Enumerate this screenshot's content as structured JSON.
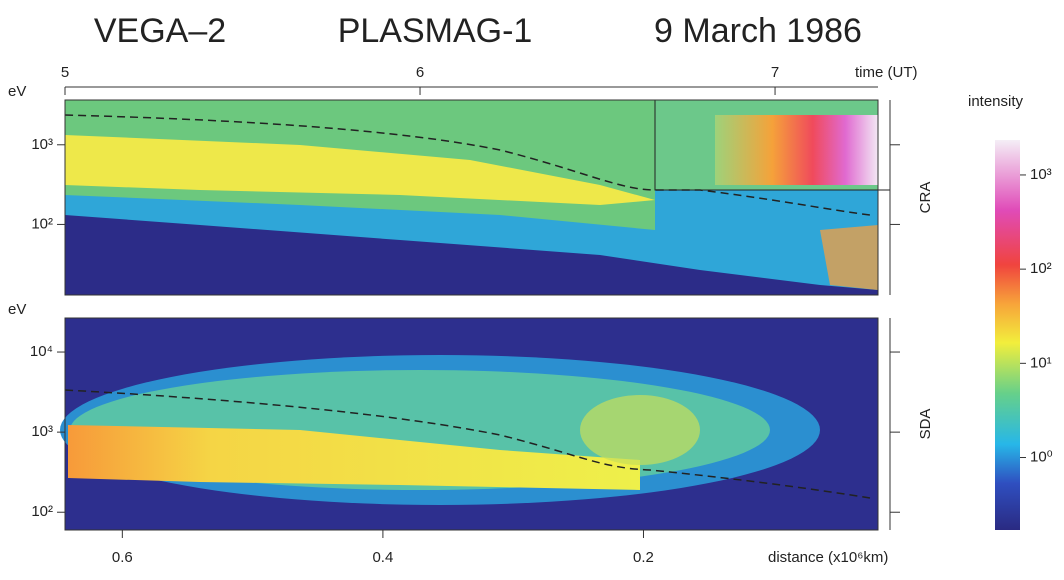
{
  "header": {
    "spacecraft": "VEGA–2",
    "instrument": "PLASMAG-1",
    "date": "9 March 1986"
  },
  "chart_data": [
    {
      "type": "spectrogram",
      "side_label": "CRA",
      "y_label": "eV",
      "x_label": "time (UT)",
      "xlim": [
        5,
        7.29
      ],
      "xticks": [
        5,
        6,
        7
      ],
      "ylog": true,
      "ylim": [
        13,
        3650
      ],
      "yticks": [
        {
          "value": 100,
          "label": "10²"
        },
        {
          "value": 1000,
          "label": "10³"
        }
      ]
    },
    {
      "type": "spectrogram",
      "side_label": "SDA",
      "y_label": "eV",
      "x_label": "distance (x10⁶km)",
      "xlim": [
        0.644,
        0.02
      ],
      "xticks": [
        0.6,
        0.4,
        0.2
      ],
      "ylog": true,
      "ylim": [
        60,
        26600
      ],
      "yticks": [
        {
          "value": 100,
          "label": "10²"
        },
        {
          "value": 1000,
          "label": "10³"
        },
        {
          "value": 10000,
          "label": "10⁴"
        }
      ]
    },
    {
      "type": "colorbar",
      "title": "intensity",
      "ylog": true,
      "ylim": [
        0.17,
        2350
      ],
      "yticks": [
        {
          "value": 1,
          "label": "10⁰"
        },
        {
          "value": 10,
          "label": "10¹"
        },
        {
          "value": 100,
          "label": "10²"
        },
        {
          "value": 1000,
          "label": "10³"
        }
      ]
    }
  ]
}
